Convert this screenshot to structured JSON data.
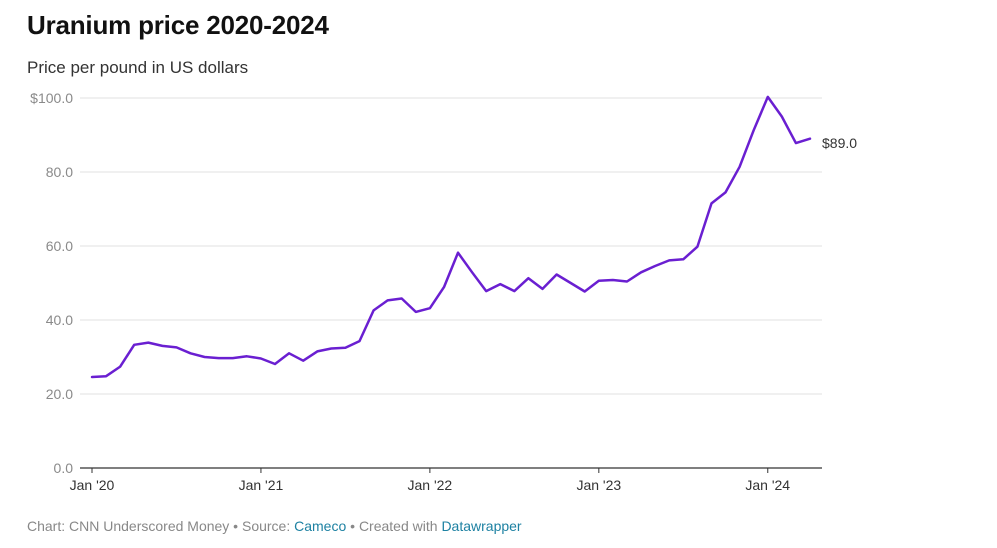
{
  "header": {
    "title": "Uranium price 2020-2024",
    "subtitle": "Price per pound in US dollars"
  },
  "footer": {
    "chart_prefix": "Chart: CNN Underscored Money • Source: ",
    "source_link": "Cameco",
    "created_prefix": " • Created with ",
    "tool_link": "Datawrapper"
  },
  "colors": {
    "line": "#6a1fd1",
    "grid": "#e2e2e2",
    "axis": "#333333",
    "link": "#1d81a2"
  },
  "chart_data": {
    "type": "line",
    "title": "Uranium price 2020-2024",
    "subtitle": "Price per pound in US dollars",
    "xlabel": "",
    "ylabel": "",
    "ylim": [
      0,
      100
    ],
    "y_ticks": [
      0,
      20,
      40,
      60,
      80,
      100
    ],
    "y_tick_labels": [
      "0.0",
      "20.0",
      "40.0",
      "60.0",
      "80.0",
      "$100.0"
    ],
    "x_ticks": [
      "2020-01",
      "2021-01",
      "2022-01",
      "2023-01",
      "2024-01"
    ],
    "x_tick_labels": [
      "Jan '20",
      "Jan '21",
      "Jan '22",
      "Jan '23",
      "Jan '24"
    ],
    "grid": true,
    "end_label": "$89.0",
    "series": [
      {
        "x": [
          "2020-01",
          "2020-02",
          "2020-03",
          "2020-04",
          "2020-05",
          "2020-06",
          "2020-07",
          "2020-08",
          "2020-09",
          "2020-10",
          "2020-11",
          "2020-12",
          "2021-01",
          "2021-02",
          "2021-03",
          "2021-04",
          "2021-05",
          "2021-06",
          "2021-07",
          "2021-08",
          "2021-09",
          "2021-10",
          "2021-11",
          "2021-12",
          "2022-01",
          "2022-02",
          "2022-03",
          "2022-04",
          "2022-05",
          "2022-06",
          "2022-07",
          "2022-08",
          "2022-09",
          "2022-10",
          "2022-11",
          "2022-12",
          "2023-01",
          "2023-02",
          "2023-03",
          "2023-04",
          "2023-05",
          "2023-06",
          "2023-07",
          "2023-08",
          "2023-09",
          "2023-10",
          "2023-11",
          "2023-12",
          "2024-01",
          "2024-02",
          "2024-03",
          "2024-04"
        ],
        "values": [
          24.6,
          24.8,
          27.4,
          33.3,
          33.9,
          33.0,
          32.6,
          31.0,
          30.0,
          29.7,
          29.7,
          30.2,
          29.6,
          28.1,
          31.0,
          29.0,
          31.5,
          32.3,
          32.5,
          34.3,
          42.6,
          45.3,
          45.8,
          42.2,
          43.2,
          48.9,
          58.2,
          52.9,
          47.8,
          49.7,
          47.8,
          51.3,
          48.4,
          52.3,
          50.0,
          47.7,
          50.6,
          50.8,
          50.4,
          52.9,
          54.6,
          56.1,
          56.4,
          59.8,
          71.5,
          74.5,
          81.4,
          91.3,
          100.3,
          95.0,
          87.8,
          89.0
        ]
      }
    ]
  }
}
